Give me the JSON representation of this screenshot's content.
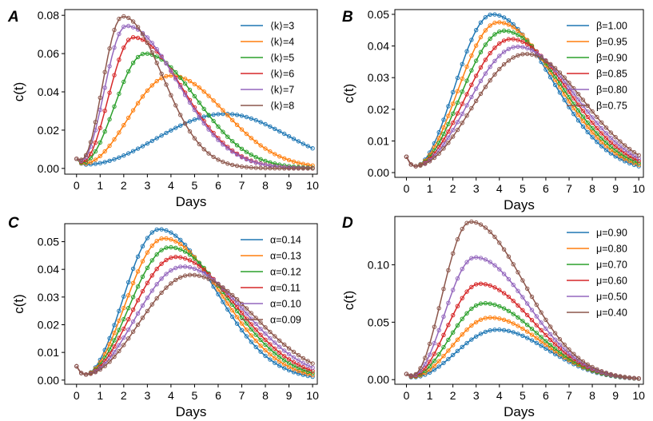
{
  "chart_data": [
    {
      "panel": "A",
      "type": "line",
      "xlabel": "Days",
      "ylabel": "c(t)",
      "xlim": [
        -0.5,
        10.2
      ],
      "ylim": [
        -0.003,
        0.083
      ],
      "xticks": [
        0,
        1,
        2,
        3,
        4,
        5,
        6,
        7,
        8,
        9,
        10
      ],
      "yticks": [
        0.0,
        0.02,
        0.04,
        0.06,
        0.08
      ],
      "ytick_labels": [
        "0.00",
        "0.02",
        "0.04",
        "0.06",
        "0.08"
      ],
      "legend_position": "top-right",
      "start_value": 0.005,
      "series": [
        {
          "name": "⟨k⟩=3",
          "color": "#1f77b4",
          "peak_x": 6.3,
          "peak_y": 0.0285,
          "trough_x": 0.35,
          "trough_y": 0.002,
          "end_y": 0.0105
        },
        {
          "name": "⟨k⟩=4",
          "color": "#ff7f0e",
          "peak_x": 4.0,
          "peak_y": 0.0485,
          "trough_x": 0.3,
          "trough_y": 0.0025,
          "end_y": 0.0015
        },
        {
          "name": "⟨k⟩=5",
          "color": "#2ca02c",
          "peak_x": 2.9,
          "peak_y": 0.06,
          "trough_x": 0.25,
          "trough_y": 0.003,
          "end_y": 0.0003
        },
        {
          "name": "⟨k⟩=6",
          "color": "#d62728",
          "peak_x": 2.4,
          "peak_y": 0.0685,
          "trough_x": 0.25,
          "trough_y": 0.0035,
          "end_y": 0.0001
        },
        {
          "name": "⟨k⟩=7",
          "color": "#9467bd",
          "peak_x": 2.1,
          "peak_y": 0.0745,
          "trough_x": 0.2,
          "trough_y": 0.004,
          "end_y": 0.0001
        },
        {
          "name": "⟨k⟩=8",
          "color": "#8c564b",
          "peak_x": 1.95,
          "peak_y": 0.0795,
          "trough_x": 0.2,
          "trough_y": 0.0045,
          "end_y": 0.0
        }
      ]
    },
    {
      "panel": "B",
      "type": "line",
      "xlabel": "Days",
      "ylabel": "c(t)",
      "xlim": [
        -0.5,
        10.2
      ],
      "ylim": [
        -0.0015,
        0.0515
      ],
      "xticks": [
        0,
        1,
        2,
        3,
        4,
        5,
        6,
        7,
        8,
        9,
        10
      ],
      "yticks": [
        0.0,
        0.01,
        0.02,
        0.03,
        0.04,
        0.05
      ],
      "ytick_labels": [
        "0.00",
        "0.01",
        "0.02",
        "0.03",
        "0.04",
        "0.05"
      ],
      "legend_position": "top-right",
      "start_value": 0.005,
      "series": [
        {
          "name": "β=1.00",
          "color": "#1f77b4",
          "peak_x": 3.7,
          "peak_y": 0.05,
          "trough_x": 0.35,
          "trough_y": 0.002,
          "end_y": 0.002
        },
        {
          "name": "β=0.95",
          "color": "#ff7f0e",
          "peak_x": 3.95,
          "peak_y": 0.0475,
          "trough_x": 0.35,
          "trough_y": 0.002,
          "end_y": 0.0025
        },
        {
          "name": "β=0.90",
          "color": "#2ca02c",
          "peak_x": 4.2,
          "peak_y": 0.0448,
          "trough_x": 0.35,
          "trough_y": 0.002,
          "end_y": 0.003
        },
        {
          "name": "β=0.85",
          "color": "#d62728",
          "peak_x": 4.5,
          "peak_y": 0.0422,
          "trough_x": 0.35,
          "trough_y": 0.002,
          "end_y": 0.0037
        },
        {
          "name": "β=0.80",
          "color": "#9467bd",
          "peak_x": 4.8,
          "peak_y": 0.0398,
          "trough_x": 0.35,
          "trough_y": 0.002,
          "end_y": 0.0045
        },
        {
          "name": "β=0.75",
          "color": "#8c564b",
          "peak_x": 5.15,
          "peak_y": 0.0375,
          "trough_x": 0.35,
          "trough_y": 0.002,
          "end_y": 0.0055
        }
      ]
    },
    {
      "panel": "C",
      "type": "line",
      "xlabel": "Days",
      "ylabel": "c(t)",
      "xlim": [
        -0.5,
        10.2
      ],
      "ylim": [
        -0.0015,
        0.0565
      ],
      "xticks": [
        0,
        1,
        2,
        3,
        4,
        5,
        6,
        7,
        8,
        9,
        10
      ],
      "yticks": [
        0.0,
        0.01,
        0.02,
        0.03,
        0.04,
        0.05
      ],
      "ytick_labels": [
        "0.00",
        "0.01",
        "0.02",
        "0.03",
        "0.04",
        "0.05"
      ],
      "legend_position": "top-right",
      "start_value": 0.005,
      "series": [
        {
          "name": "α=0.14",
          "color": "#1f77b4",
          "peak_x": 3.5,
          "peak_y": 0.0545,
          "trough_x": 0.35,
          "trough_y": 0.002,
          "end_y": 0.0012
        },
        {
          "name": "α=0.13",
          "color": "#ff7f0e",
          "peak_x": 3.7,
          "peak_y": 0.0512,
          "trough_x": 0.35,
          "trough_y": 0.002,
          "end_y": 0.0018
        },
        {
          "name": "α=0.12",
          "color": "#2ca02c",
          "peak_x": 3.95,
          "peak_y": 0.048,
          "trough_x": 0.35,
          "trough_y": 0.002,
          "end_y": 0.0025
        },
        {
          "name": "α=0.11",
          "color": "#d62728",
          "peak_x": 4.2,
          "peak_y": 0.0445,
          "trough_x": 0.35,
          "trough_y": 0.002,
          "end_y": 0.0033
        },
        {
          "name": "α=0.10",
          "color": "#9467bd",
          "peak_x": 4.5,
          "peak_y": 0.041,
          "trough_x": 0.35,
          "trough_y": 0.002,
          "end_y": 0.0045
        },
        {
          "name": "α=0.09",
          "color": "#8c564b",
          "peak_x": 4.85,
          "peak_y": 0.038,
          "trough_x": 0.35,
          "trough_y": 0.002,
          "end_y": 0.006
        }
      ]
    },
    {
      "panel": "D",
      "type": "line",
      "xlabel": "Days",
      "ylabel": "c(t)",
      "xlim": [
        -0.5,
        10.2
      ],
      "ylim": [
        -0.004,
        0.142
      ],
      "xticks": [
        0,
        1,
        2,
        3,
        4,
        5,
        6,
        7,
        8,
        9,
        10
      ],
      "yticks": [
        0.0,
        0.05,
        0.1
      ],
      "ytick_labels": [
        "0.00",
        "0.05",
        "0.10"
      ],
      "legend_position": "top-right",
      "start_value": 0.005,
      "series": [
        {
          "name": "μ=0.90",
          "color": "#1f77b4",
          "peak_x": 3.9,
          "peak_y": 0.0435,
          "trough_x": 0.25,
          "trough_y": 0.002,
          "end_y": 0.0008
        },
        {
          "name": "μ=0.80",
          "color": "#ff7f0e",
          "peak_x": 3.6,
          "peak_y": 0.054,
          "trough_x": 0.25,
          "trough_y": 0.0025,
          "end_y": 0.0009
        },
        {
          "name": "μ=0.70",
          "color": "#2ca02c",
          "peak_x": 3.35,
          "peak_y": 0.0665,
          "trough_x": 0.25,
          "trough_y": 0.0028,
          "end_y": 0.0009
        },
        {
          "name": "μ=0.60",
          "color": "#d62728",
          "peak_x": 3.15,
          "peak_y": 0.0835,
          "trough_x": 0.25,
          "trough_y": 0.003,
          "end_y": 0.001
        },
        {
          "name": "μ=0.50",
          "color": "#9467bd",
          "peak_x": 2.95,
          "peak_y": 0.1065,
          "trough_x": 0.25,
          "trough_y": 0.0033,
          "end_y": 0.001
        },
        {
          "name": "μ=0.40",
          "color": "#8c564b",
          "peak_x": 2.75,
          "peak_y": 0.1375,
          "trough_x": 0.25,
          "trough_y": 0.0036,
          "end_y": 0.0011
        }
      ]
    }
  ]
}
